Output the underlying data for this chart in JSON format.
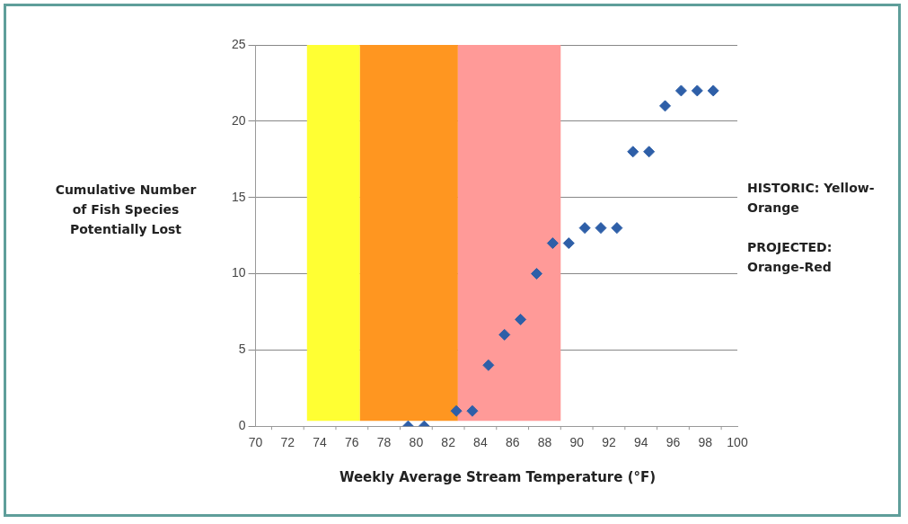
{
  "chart_data": {
    "type": "scatter",
    "xlabel": "Weekly Average Stream Temperature (°F)",
    "ylabel": "Cumulative Number of Fish Species Potentially Lost",
    "x": [
      79.5,
      80.5,
      82.5,
      83.5,
      84.5,
      85.5,
      86.5,
      87.5,
      88.5,
      89.5,
      90.5,
      91.5,
      92.5,
      93.5,
      94.5,
      95.5,
      96.5,
      97.5,
      98.5
    ],
    "series": [
      {
        "color": "#2e5fa8",
        "values": [
          0,
          0,
          1,
          1,
          4,
          6,
          7,
          10,
          12,
          12,
          13,
          13,
          13,
          18,
          18,
          21,
          22,
          22,
          22
        ]
      }
    ],
    "marker": "diamond",
    "grid": "y",
    "xlim": [
      70,
      100
    ],
    "xticks": [
      70,
      72,
      74,
      76,
      78,
      80,
      82,
      84,
      86,
      88,
      90,
      92,
      94,
      96,
      98,
      100
    ],
    "ylim": [
      0,
      25
    ],
    "yticks": [
      0,
      5,
      10,
      15,
      20,
      25
    ],
    "bands": [
      {
        "axis": "x",
        "from": 73.2,
        "to": 76.5,
        "color": "#ffff33"
      },
      {
        "axis": "x",
        "from": 76.5,
        "to": 82.6,
        "color": "#ff9620"
      },
      {
        "axis": "x",
        "from": 82.6,
        "to": 89,
        "color": "#ff9a98"
      }
    ],
    "annotations": [
      "HISTORIC: Yellow-Orange",
      "PROJECTED: Orange-Red"
    ]
  }
}
